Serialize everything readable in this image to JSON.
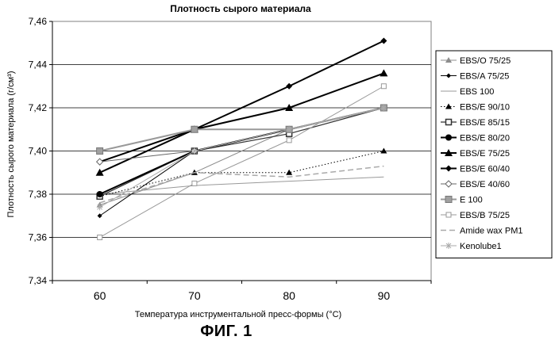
{
  "chart_data": {
    "type": "line",
    "title": "Плотность сырого материала",
    "xlabel": "Температура инструментальной пресс-формы (°С)",
    "ylabel": "Плотность сырого материала (г/см³)",
    "categories": [
      "60",
      "70",
      "80",
      "90"
    ],
    "ylim": [
      7.34,
      7.46
    ],
    "yticks": [
      "7,34",
      "7,36",
      "7,38",
      "7,40",
      "7,42",
      "7,44",
      "7,46"
    ],
    "grid": true,
    "legend_position": "right",
    "series": [
      {
        "name": "EBS/O 75/25",
        "values": [
          7.375,
          7.39,
          7.41,
          7.42
        ],
        "color": "#8c8c8c",
        "marker": "triangle",
        "dash": "solid",
        "width": 1
      },
      {
        "name": "EBS/A 75/25",
        "values": [
          7.37,
          7.4,
          7.41,
          7.42
        ],
        "color": "#000000",
        "marker": "diamond-small",
        "dash": "solid",
        "width": 1
      },
      {
        "name": "EBS 100",
        "values": [
          7.38,
          7.384,
          7.386,
          7.388
        ],
        "color": "#999999",
        "marker": "none",
        "dash": "solid",
        "width": 1
      },
      {
        "name": "EBS/E 90/10",
        "values": [
          7.379,
          7.39,
          7.39,
          7.4
        ],
        "color": "#000000",
        "marker": "triangle",
        "dash": "dotted",
        "width": 1
      },
      {
        "name": "EBS/E 85/15",
        "values": [
          7.379,
          7.4,
          7.408,
          7.42
        ],
        "color": "#333333",
        "marker": "square",
        "dash": "solid",
        "width": 1.2
      },
      {
        "name": "EBS/E 80/20",
        "values": [
          7.38,
          7.4,
          7.41,
          7.42
        ],
        "color": "#000000",
        "marker": "circle",
        "dash": "solid",
        "width": 2
      },
      {
        "name": "EBS/E 75/25",
        "values": [
          7.39,
          7.41,
          7.42,
          7.436
        ],
        "color": "#000000",
        "marker": "triangle-big",
        "dash": "solid",
        "width": 2
      },
      {
        "name": "EBS/E 60/40",
        "values": [
          7.395,
          7.41,
          7.43,
          7.451
        ],
        "color": "#000000",
        "marker": "diamond",
        "dash": "solid",
        "width": 2
      },
      {
        "name": "EBS/E 40/60",
        "values": [
          7.395,
          7.4,
          7.41,
          7.42
        ],
        "color": "#666666",
        "marker": "diamond-open",
        "dash": "solid",
        "width": 1
      },
      {
        "name": "E 100",
        "values": [
          7.4,
          7.41,
          7.41,
          7.42
        ],
        "color": "#999999",
        "marker": "square-grey",
        "dash": "solid",
        "width": 2
      },
      {
        "name": "EBS/B 75/25",
        "values": [
          7.36,
          7.385,
          7.405,
          7.43
        ],
        "color": "#999999",
        "marker": "square-open",
        "dash": "solid",
        "width": 1
      },
      {
        "name": "Amide wax PM1",
        "values": [
          7.376,
          7.39,
          7.388,
          7.393
        ],
        "color": "#aaaaaa",
        "marker": "none",
        "dash": "dashed",
        "width": 1.5
      },
      {
        "name": "Kenolube1",
        "values": [
          7.374,
          7.4,
          7.41,
          7.42
        ],
        "color": "#aaaaaa",
        "marker": "star",
        "dash": "solid",
        "width": 1
      }
    ]
  },
  "figure_caption": "ФИГ. 1"
}
